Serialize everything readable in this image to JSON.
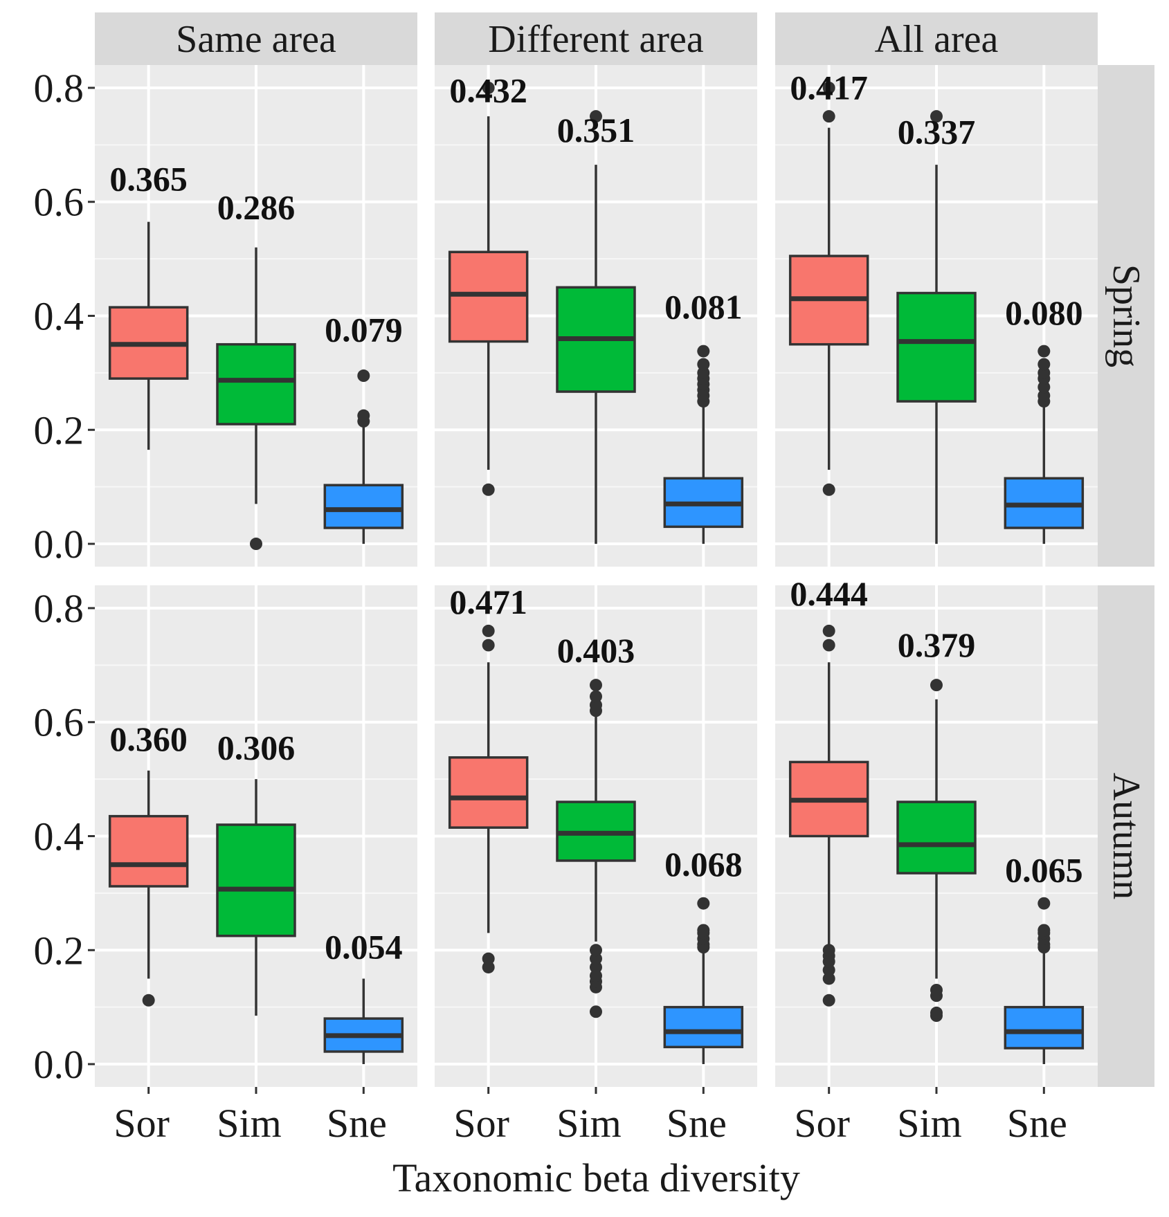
{
  "chart_data": {
    "type": "boxplot",
    "xlabel": "Taxonomic beta diversity",
    "ylabel": "",
    "ylim": [
      -0.04,
      0.84
    ],
    "yticks": [
      0.0,
      0.2,
      0.4,
      0.6,
      0.8
    ],
    "ytick_labels": [
      "0.0",
      "0.2",
      "0.4",
      "0.6",
      "0.8"
    ],
    "categories": [
      "Sor",
      "Sim",
      "Sne"
    ],
    "colors": {
      "Sor": "#F8766D",
      "Sim": "#00BA38",
      "Sne": "#2E95FF"
    },
    "columns": [
      "Same area",
      "Different area",
      "All area"
    ],
    "rows": [
      "Spring",
      "Autumn"
    ],
    "panels": [
      {
        "row": "Spring",
        "column": "Same area",
        "boxes": [
          {
            "category": "Sor",
            "q1": 0.29,
            "median": 0.35,
            "q3": 0.415,
            "whisker_low": 0.165,
            "whisker_high": 0.565,
            "outliers": [],
            "mean_label": "0.365",
            "label_at": 0.62
          },
          {
            "category": "Sim",
            "q1": 0.21,
            "median": 0.287,
            "q3": 0.35,
            "whisker_low": 0.07,
            "whisker_high": 0.52,
            "outliers": [
              0.0
            ],
            "mean_label": "0.286",
            "label_at": 0.57
          },
          {
            "category": "Sne",
            "q1": 0.028,
            "median": 0.06,
            "q3": 0.103,
            "whisker_low": 0.0,
            "whisker_high": 0.205,
            "outliers": [
              0.215,
              0.225,
              0.295
            ],
            "mean_label": "0.079",
            "label_at": 0.355
          }
        ]
      },
      {
        "row": "Spring",
        "column": "Different area",
        "boxes": [
          {
            "category": "Sor",
            "q1": 0.355,
            "median": 0.438,
            "q3": 0.512,
            "whisker_low": 0.13,
            "whisker_high": 0.75,
            "outliers": [
              0.095,
              0.8
            ],
            "mean_label": "0.432",
            "label_at": 0.775
          },
          {
            "category": "Sim",
            "q1": 0.267,
            "median": 0.36,
            "q3": 0.45,
            "whisker_low": 0.0,
            "whisker_high": 0.665,
            "outliers": [
              0.75
            ],
            "mean_label": "0.351",
            "label_at": 0.705
          },
          {
            "category": "Sne",
            "q1": 0.03,
            "median": 0.07,
            "q3": 0.115,
            "whisker_low": 0.0,
            "whisker_high": 0.24,
            "outliers": [
              0.25,
              0.26,
              0.27,
              0.28,
              0.29,
              0.3,
              0.315,
              0.338
            ],
            "mean_label": "0.081",
            "label_at": 0.395
          }
        ]
      },
      {
        "row": "Spring",
        "column": "All area",
        "boxes": [
          {
            "category": "Sor",
            "q1": 0.35,
            "median": 0.43,
            "q3": 0.505,
            "whisker_low": 0.13,
            "whisker_high": 0.73,
            "outliers": [
              0.095,
              0.75,
              0.8
            ],
            "mean_label": "0.417",
            "label_at": 0.78
          },
          {
            "category": "Sim",
            "q1": 0.25,
            "median": 0.355,
            "q3": 0.44,
            "whisker_low": 0.0,
            "whisker_high": 0.665,
            "outliers": [
              0.75
            ],
            "mean_label": "0.337",
            "label_at": 0.702
          },
          {
            "category": "Sne",
            "q1": 0.028,
            "median": 0.068,
            "q3": 0.115,
            "whisker_low": 0.0,
            "whisker_high": 0.24,
            "outliers": [
              0.25,
              0.26,
              0.275,
              0.29,
              0.3,
              0.315,
              0.338
            ],
            "mean_label": "0.080",
            "label_at": 0.385
          }
        ]
      },
      {
        "row": "Autumn",
        "column": "Same area",
        "boxes": [
          {
            "category": "Sor",
            "q1": 0.312,
            "median": 0.35,
            "q3": 0.435,
            "whisker_low": 0.15,
            "whisker_high": 0.515,
            "outliers": [
              0.112
            ],
            "mean_label": "0.360",
            "label_at": 0.55
          },
          {
            "category": "Sim",
            "q1": 0.225,
            "median": 0.307,
            "q3": 0.42,
            "whisker_low": 0.085,
            "whisker_high": 0.5,
            "outliers": [],
            "mean_label": "0.306",
            "label_at": 0.535
          },
          {
            "category": "Sne",
            "q1": 0.022,
            "median": 0.05,
            "q3": 0.08,
            "whisker_low": 0.0,
            "whisker_high": 0.15,
            "outliers": [],
            "mean_label": "0.054",
            "label_at": 0.185
          }
        ]
      },
      {
        "row": "Autumn",
        "column": "Different area",
        "boxes": [
          {
            "category": "Sor",
            "q1": 0.415,
            "median": 0.467,
            "q3": 0.538,
            "whisker_low": 0.23,
            "whisker_high": 0.705,
            "outliers": [
              0.17,
              0.185,
              0.735,
              0.76
            ],
            "mean_label": "0.471",
            "label_at": 0.79
          },
          {
            "category": "Sim",
            "q1": 0.357,
            "median": 0.405,
            "q3": 0.46,
            "whisker_low": 0.215,
            "whisker_high": 0.61,
            "outliers": [
              0.092,
              0.135,
              0.145,
              0.155,
              0.17,
              0.185,
              0.2,
              0.62,
              0.63,
              0.645,
              0.665
            ],
            "mean_label": "0.403",
            "label_at": 0.705
          },
          {
            "category": "Sne",
            "q1": 0.03,
            "median": 0.057,
            "q3": 0.1,
            "whisker_low": 0.0,
            "whisker_high": 0.2,
            "outliers": [
              0.205,
              0.21,
              0.22,
              0.23,
              0.235,
              0.282
            ],
            "mean_label": "0.068",
            "label_at": 0.33
          }
        ]
      },
      {
        "row": "Autumn",
        "column": "All area",
        "boxes": [
          {
            "category": "Sor",
            "q1": 0.4,
            "median": 0.463,
            "q3": 0.53,
            "whisker_low": 0.21,
            "whisker_high": 0.705,
            "outliers": [
              0.112,
              0.15,
              0.165,
              0.18,
              0.19,
              0.2,
              0.735,
              0.76
            ],
            "mean_label": "0.444",
            "label_at": 0.805
          },
          {
            "category": "Sim",
            "q1": 0.335,
            "median": 0.385,
            "q3": 0.46,
            "whisker_low": 0.15,
            "whisker_high": 0.64,
            "outliers": [
              0.085,
              0.09,
              0.12,
              0.13,
              0.665
            ],
            "mean_label": "0.379",
            "label_at": 0.715
          },
          {
            "category": "Sne",
            "q1": 0.028,
            "median": 0.057,
            "q3": 0.1,
            "whisker_low": 0.0,
            "whisker_high": 0.2,
            "outliers": [
              0.205,
              0.21,
              0.22,
              0.23,
              0.235,
              0.282
            ],
            "mean_label": "0.065",
            "label_at": 0.32
          }
        ]
      }
    ]
  }
}
